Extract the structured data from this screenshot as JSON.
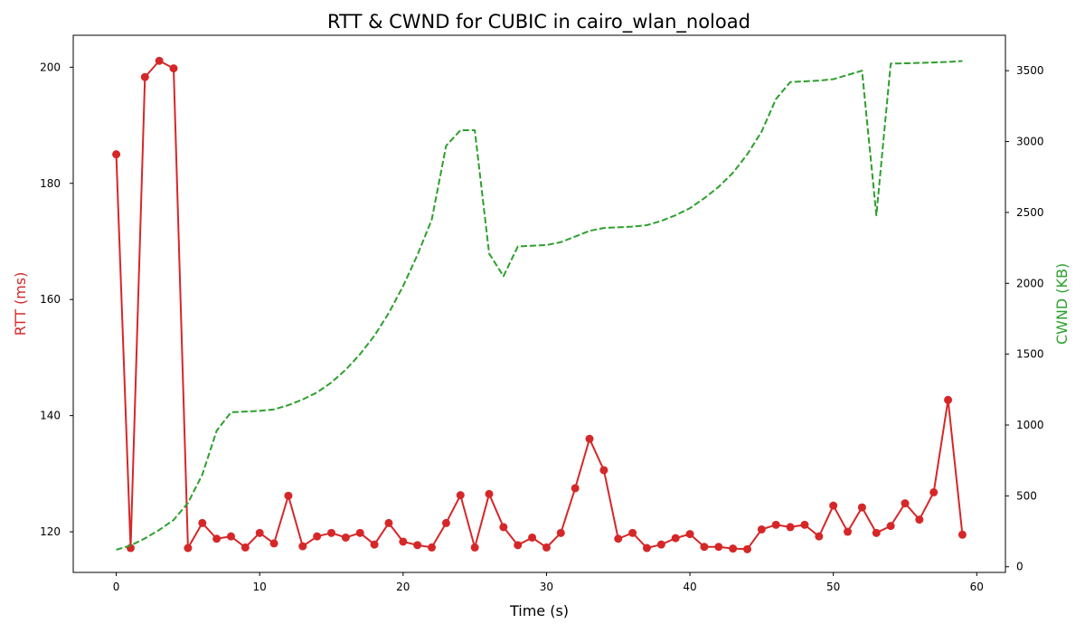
{
  "chart_data": {
    "type": "line",
    "title": "RTT & CWND for CUBIC in cairo_wlan_noload",
    "xlabel": "Time (s)",
    "ylabel_left": "RTT (ms)",
    "ylabel_right": "CWND (KB)",
    "xlim": [
      -3,
      62
    ],
    "ylim_left": [
      113,
      205.5
    ],
    "ylim_right": [
      -40,
      3750
    ],
    "x_ticks": [
      0,
      10,
      20,
      30,
      40,
      50,
      60
    ],
    "y_left_ticks": [
      120,
      140,
      160,
      180,
      200
    ],
    "y_right_ticks": [
      0,
      500,
      1000,
      1500,
      2000,
      2500,
      3000,
      3500
    ],
    "colors": {
      "rtt": "#d62728",
      "cwnd": "#2ca02c"
    },
    "series": [
      {
        "name": "RTT",
        "axis": "left",
        "style": "solid-marker",
        "x": [
          0,
          1,
          2,
          3,
          4,
          5,
          6,
          7,
          8,
          9,
          10,
          11,
          12,
          13,
          14,
          15,
          16,
          17,
          18,
          19,
          20,
          21,
          22,
          23,
          24,
          25,
          26,
          27,
          28,
          29,
          30,
          31,
          32,
          33,
          34,
          35,
          36,
          37,
          38,
          39,
          40,
          41,
          42,
          43,
          44,
          45,
          46,
          47,
          48,
          49,
          50,
          51,
          52,
          53,
          54,
          55,
          56,
          57,
          58,
          59
        ],
        "values": [
          185.0,
          117.2,
          198.3,
          201.1,
          199.8,
          117.2,
          121.5,
          118.8,
          119.2,
          117.3,
          119.8,
          118.0,
          126.2,
          117.5,
          119.2,
          119.8,
          119.0,
          119.8,
          117.8,
          121.5,
          118.3,
          117.7,
          117.3,
          121.5,
          126.3,
          117.3,
          126.5,
          120.8,
          117.7,
          119.0,
          117.3,
          119.8,
          127.5,
          136.0,
          130.6,
          118.8,
          119.8,
          117.2,
          117.8,
          118.9,
          119.6,
          117.4,
          117.4,
          117.1,
          117.0,
          120.4,
          121.2,
          120.8,
          121.2,
          119.2,
          124.5,
          120.0,
          124.2,
          119.8,
          121.0,
          124.9,
          122.1,
          126.8,
          142.7,
          119.5
        ]
      },
      {
        "name": "CWND",
        "axis": "right",
        "style": "dashed",
        "x": [
          0,
          1,
          2,
          3,
          4,
          5,
          6,
          7,
          8,
          9,
          10,
          11,
          12,
          13,
          14,
          15,
          16,
          17,
          18,
          19,
          20,
          21,
          22,
          23,
          24,
          25,
          26,
          27,
          28,
          29,
          30,
          31,
          32,
          33,
          34,
          35,
          36,
          37,
          38,
          39,
          40,
          41,
          42,
          43,
          44,
          45,
          46,
          47,
          48,
          49,
          50,
          51,
          52,
          53,
          54,
          55,
          56,
          57,
          58,
          59
        ],
        "values": [
          120,
          150,
          200,
          260,
          330,
          450,
          650,
          960,
          1090,
          1095,
          1100,
          1110,
          1140,
          1180,
          1230,
          1300,
          1390,
          1500,
          1630,
          1790,
          1980,
          2200,
          2450,
          2970,
          3080,
          3080,
          2210,
          2050,
          2260,
          2265,
          2270,
          2290,
          2330,
          2370,
          2390,
          2395,
          2400,
          2410,
          2440,
          2480,
          2530,
          2600,
          2680,
          2780,
          2910,
          3070,
          3300,
          3420,
          3425,
          3430,
          3440,
          3470,
          3500,
          2480,
          3550,
          3552,
          3555,
          3558,
          3562,
          3568
        ]
      }
    ]
  }
}
